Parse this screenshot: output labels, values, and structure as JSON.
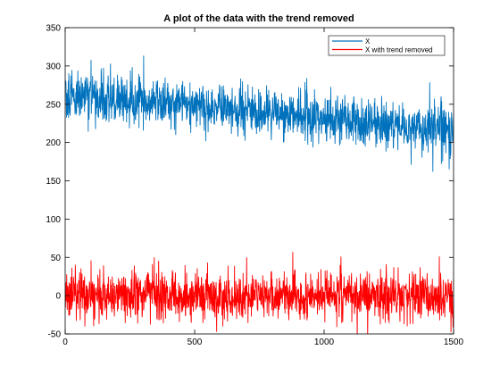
{
  "figure": {
    "title": "A plot of the data with the trend removed"
  },
  "chart_data": {
    "type": "line",
    "title": "A plot of the data with the trend removed",
    "xlabel": "",
    "ylabel": "",
    "xlim": [
      0,
      1500
    ],
    "ylim": [
      -50,
      350
    ],
    "xticks": [
      0,
      500,
      1000,
      1500
    ],
    "yticks": [
      -50,
      0,
      50,
      100,
      150,
      200,
      250,
      300,
      350
    ],
    "grid": false,
    "legend_position": "top-right",
    "n_points": 1500,
    "series": [
      {
        "name": "X",
        "color": "#0072bd",
        "trend": {
          "start": 262,
          "end": 216
        },
        "noise_sd": 16,
        "extremes": [
          {
            "x": 100,
            "y": 308
          },
          {
            "x": 175,
            "y": 303
          },
          {
            "x": 1483,
            "y": 165
          },
          {
            "x": 1500,
            "y": 238
          }
        ]
      },
      {
        "name": "X with trend removed",
        "color": "#ff0000",
        "trend": {
          "start": 0,
          "end": 0
        },
        "noise_sd": 16,
        "extremes": [
          {
            "x": 100,
            "y": 46
          },
          {
            "x": 1065,
            "y": 51
          },
          {
            "x": 1490,
            "y": -48
          },
          {
            "x": 1500,
            "y": 22
          }
        ]
      }
    ]
  }
}
